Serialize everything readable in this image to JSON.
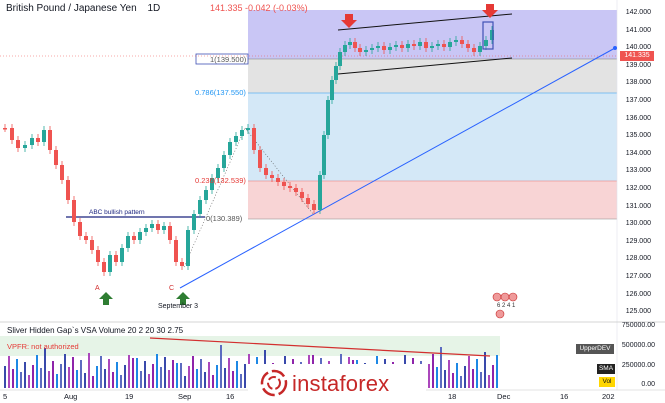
{
  "header": {
    "symbol": "British Pound / Japanese Yen",
    "interval": "1D",
    "ohlc_text": "141.335  -0.042 (-0.03%)"
  },
  "fib_labels": {
    "level_1": "1(139.500)",
    "level_0786": "0.786(137.550)",
    "level_0236": "0.236(132.539)",
    "level_0": "0(130.389)"
  },
  "annotations": {
    "abc_label": "ABC bullish pattern",
    "point_a": "A",
    "point_c": "C",
    "date_label": "September 3"
  },
  "price_axis": {
    "ticks": [
      "142.000",
      "141.000",
      "140.000",
      "139.000",
      "138.000",
      "137.000",
      "136.000",
      "135.000",
      "134.000",
      "133.000",
      "132.000",
      "131.000",
      "130.000",
      "129.000",
      "128.000",
      "127.000",
      "126.000",
      "125.000"
    ],
    "last_price": "141.335"
  },
  "volume_pane": {
    "title": "Sliver Hidden Gap`s VSA Volume 20 2 20 30 2.75",
    "vpfr_text": "VPFR: not authorized",
    "ticks": [
      "750000.00",
      "500000.00",
      "250000.00",
      "0.00"
    ],
    "badges": {
      "upper": "UpperDEV",
      "sma": "SMA",
      "vol": "Vol"
    }
  },
  "time_axis": {
    "ticks": [
      "5",
      "Aug",
      "19",
      "Sep",
      "16",
      "18",
      "Dec",
      "16",
      "202"
    ]
  },
  "events": {
    "label": "6  2 4 1"
  },
  "watermark": {
    "brand": "instaforex"
  },
  "colors": {
    "bull": "#26a69a",
    "bear": "#ef5350",
    "fib_top": "#b7b3f2",
    "fib_mid": "#dcdcdc",
    "fib_blue": "#c8e3f6",
    "fib_red": "#f6c9cb",
    "trend": "#2962ff",
    "arrow_red": "#e53935",
    "arrow_green": "#2e7d32"
  }
}
